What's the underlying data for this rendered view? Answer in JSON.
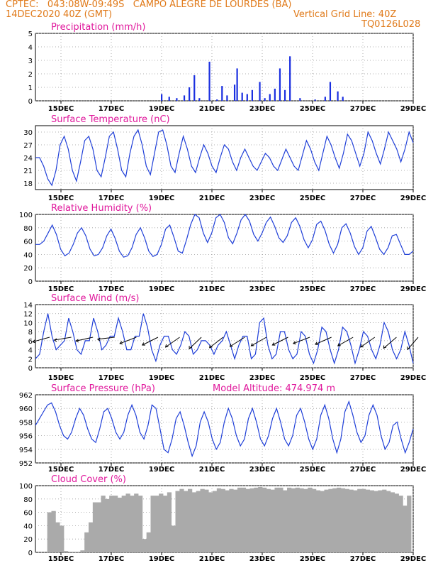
{
  "header": {
    "line1": "CPTEC:   043:08W-09:49S   CAMPO ALEGRE DE LOURDES (BA)",
    "line2_left": "14DEC2020 40Z (GMT)",
    "line2_right": "Vertical Grid Line: 40Z",
    "line3_right": "TQ0126L028"
  },
  "colors": {
    "header": "#e07a1a",
    "title": "#e0189c",
    "line": "#1f3fd8",
    "bar": "#1a2fe0",
    "cloud": "#aaaaaa",
    "grid": "#999999"
  },
  "x_tick_labels": [
    "15DEC",
    "17DEC",
    "19DEC",
    "21DEC",
    "23DEC",
    "25DEC",
    "27DEC",
    "29DEC"
  ],
  "chart_data": [
    {
      "type": "bar",
      "title": "Precipitation  (mm/h)",
      "ylim": [
        0,
        5
      ],
      "yticks": [
        "0",
        "1",
        "2",
        "3",
        "4",
        "5"
      ],
      "x": [
        "19DEC",
        "19.3DEC",
        "19.6DEC",
        "19.9DEC",
        "20.1DEC",
        "20.3DEC",
        "20.5DEC",
        "20.9DEC",
        "21.2DEC",
        "21.4DEC",
        "21.6DEC",
        "21.9DEC",
        "22.0DEC",
        "22.2DEC",
        "22.4DEC",
        "22.6DEC",
        "22.9DEC",
        "23.1DEC",
        "23.3DEC",
        "23.5DEC",
        "23.7DEC",
        "23.9DEC",
        "24.1DEC",
        "24.5DEC",
        "25.1DEC",
        "25.5DEC",
        "25.7DEC",
        "26.0DEC",
        "26.2DEC"
      ],
      "values": [
        0.5,
        0.3,
        0.2,
        0.4,
        1.0,
        1.9,
        0.2,
        2.9,
        0.1,
        1.1,
        0.4,
        1.2,
        2.4,
        0.6,
        0.5,
        0.8,
        1.4,
        0.2,
        0.5,
        0.9,
        2.4,
        0.8,
        3.3,
        0.2,
        0.1,
        0.3,
        1.4,
        0.7,
        0.3
      ]
    },
    {
      "type": "line",
      "title": "Surface Temperature  (nC)",
      "ylim": [
        16.5,
        31.5
      ],
      "yticks": [
        "18",
        "21",
        "24",
        "27",
        "30"
      ],
      "series": [
        {
          "values": [
            24,
            24,
            22,
            19,
            17.5,
            21,
            27,
            29,
            26,
            21,
            18.5,
            23,
            28,
            29,
            26,
            21,
            19.5,
            24,
            29,
            30,
            26,
            21,
            19.5,
            25,
            29,
            30.5,
            27,
            22,
            20,
            25,
            30,
            30.5,
            27,
            22,
            20.5,
            25,
            29,
            26,
            22,
            20.5,
            24,
            27,
            25,
            22,
            20.5,
            24,
            27,
            26,
            23,
            21,
            24,
            26,
            24,
            22,
            21,
            23,
            25,
            24,
            22,
            21,
            23.5,
            26,
            24,
            22,
            21,
            24.5,
            28,
            26,
            23,
            21,
            25,
            29,
            27,
            24,
            21.5,
            25,
            29.5,
            28,
            25,
            22,
            25,
            30,
            28,
            25,
            22.5,
            26,
            30,
            28,
            26,
            23,
            26,
            30,
            27.5
          ]
        }
      ]
    },
    {
      "type": "line",
      "title": "Relative Humidity  (%)",
      "ylim": [
        0,
        100
      ],
      "yticks": [
        "0",
        "20",
        "40",
        "60",
        "80",
        "100"
      ],
      "series": [
        {
          "values": [
            55,
            55,
            60,
            72,
            84,
            70,
            48,
            38,
            42,
            55,
            72,
            80,
            68,
            48,
            38,
            40,
            50,
            68,
            78,
            64,
            45,
            36,
            38,
            50,
            70,
            80,
            65,
            45,
            37,
            40,
            55,
            78,
            84,
            66,
            45,
            42,
            62,
            85,
            100,
            95,
            72,
            58,
            72,
            95,
            100,
            88,
            65,
            56,
            72,
            92,
            100,
            90,
            70,
            60,
            72,
            88,
            96,
            82,
            65,
            58,
            68,
            88,
            95,
            82,
            62,
            50,
            62,
            85,
            90,
            76,
            55,
            42,
            55,
            80,
            86,
            72,
            52,
            40,
            50,
            75,
            82,
            66,
            48,
            40,
            50,
            68,
            70,
            55,
            40,
            40,
            45
          ]
        }
      ]
    },
    {
      "type": "line",
      "title": "Surface Wind  (m/s)",
      "ylim": [
        0,
        14
      ],
      "yticks": [
        "0",
        "2",
        "4",
        "6",
        "8",
        "10",
        "12",
        "14"
      ],
      "series": [
        {
          "values": [
            2,
            3,
            8,
            12,
            7,
            4,
            5,
            6,
            11,
            8,
            4,
            3,
            6,
            6,
            11,
            8,
            4,
            5,
            7,
            7,
            11,
            8,
            4,
            4,
            7,
            7,
            12,
            9,
            4,
            1.5,
            5,
            7,
            7,
            4,
            3,
            5,
            8,
            7,
            3,
            4,
            6,
            6,
            5,
            3,
            5,
            6,
            8,
            5,
            2,
            5,
            7,
            7,
            2,
            3,
            10,
            11,
            5,
            2,
            3,
            8,
            8,
            4,
            2,
            3,
            8,
            7,
            3,
            1,
            4,
            9,
            8,
            4,
            1,
            4,
            9,
            8,
            5,
            1,
            4,
            8,
            7,
            4,
            2,
            5,
            10,
            8,
            4,
            2,
            4,
            8,
            5,
            1
          ]
        }
      ]
    },
    {
      "type": "line",
      "title": "Surface Pressure  (hPa)",
      "annotation": "Model Altitude: 474.974  m",
      "ylim": [
        952,
        962
      ],
      "yticks": [
        "952",
        "954",
        "956",
        "958",
        "960",
        "962"
      ],
      "series": [
        {
          "values": [
            957.5,
            958.5,
            959.5,
            960.5,
            960.8,
            959.5,
            957.5,
            956,
            955.5,
            956.5,
            958.5,
            960,
            959,
            957,
            955.5,
            955,
            957,
            959.5,
            960,
            958.5,
            956.5,
            955.5,
            956.5,
            959,
            960.5,
            959,
            956.5,
            955.5,
            957.5,
            960.5,
            960,
            957,
            954,
            953.5,
            955.5,
            958.5,
            959.5,
            957.5,
            955,
            953,
            954.5,
            958,
            959.5,
            958,
            955.5,
            954,
            955,
            958,
            960,
            958.5,
            956,
            954.5,
            955.5,
            958.5,
            960,
            958,
            955.5,
            954.5,
            956,
            958.5,
            960,
            958,
            955.5,
            954.5,
            956,
            959,
            960,
            958,
            955.5,
            954,
            955.5,
            959,
            960.5,
            958.5,
            955.5,
            953.5,
            955.5,
            959.5,
            961,
            959,
            956.5,
            955,
            956,
            959,
            960.5,
            959,
            956,
            954,
            955,
            957.5,
            958,
            955.5,
            953.5,
            955,
            957
          ]
        }
      ]
    },
    {
      "type": "bar",
      "title": "Cloud Cover  (%)",
      "ylim": [
        0,
        100
      ],
      "yticks": [
        "0",
        "20",
        "40",
        "60",
        "80",
        "100"
      ],
      "series": [
        {
          "values": [
            0,
            0,
            60,
            62,
            45,
            40,
            2,
            1,
            1,
            1,
            3,
            30,
            45,
            75,
            75,
            85,
            80,
            85,
            85,
            82,
            85,
            88,
            85,
            88,
            85,
            20,
            30,
            85,
            85,
            88,
            85,
            90,
            40,
            92,
            95,
            92,
            95,
            90,
            92,
            95,
            94,
            90,
            92,
            96,
            95,
            93,
            95,
            94,
            97,
            97,
            95,
            96,
            97,
            98,
            97,
            95,
            94,
            97,
            97,
            93,
            97,
            96,
            97,
            96,
            95,
            97,
            95,
            93,
            92,
            94,
            95,
            96,
            97,
            96,
            95,
            94,
            93,
            95,
            95,
            94,
            93,
            92,
            93,
            94,
            92,
            90,
            88,
            85,
            70,
            85
          ]
        }
      ]
    }
  ]
}
